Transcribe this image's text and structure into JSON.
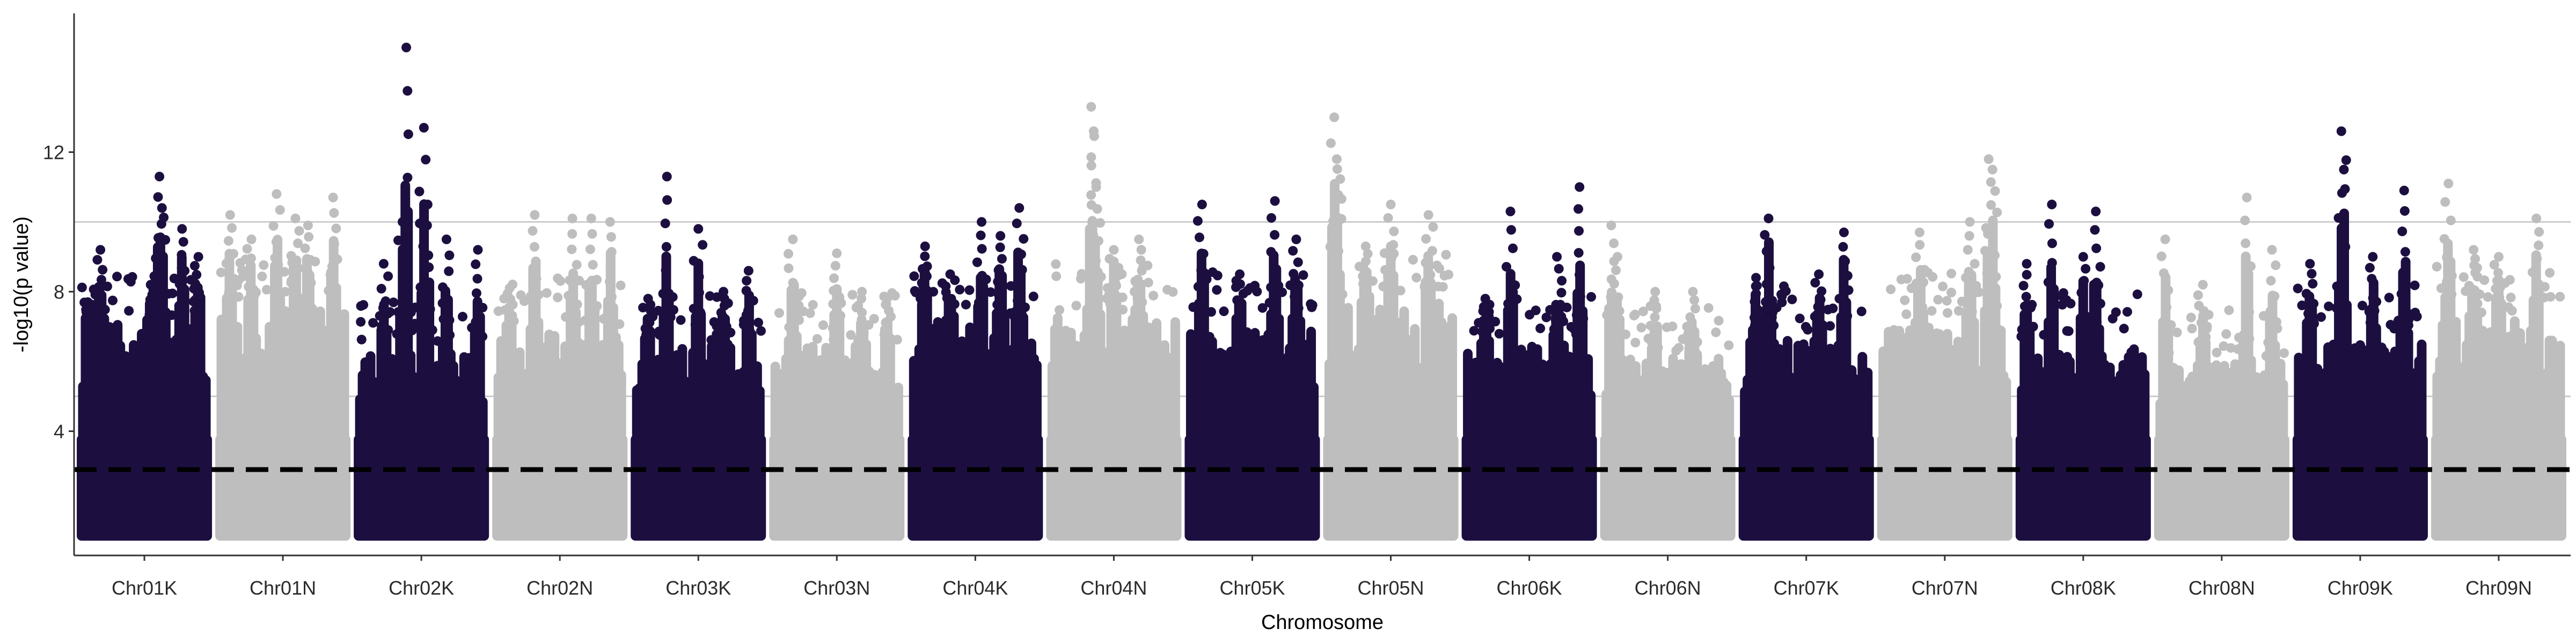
{
  "chart_data": {
    "type": "scatter",
    "title": "",
    "xlabel": "Chromosome",
    "ylabel": "-log10(p value)",
    "categories": [
      "Chr01K",
      "Chr01N",
      "Chr02K",
      "Chr02N",
      "Chr03K",
      "Chr03N",
      "Chr04K",
      "Chr04N",
      "Chr05K",
      "Chr05N",
      "Chr06K",
      "Chr06N",
      "Chr07K",
      "Chr07N",
      "Chr08K",
      "Chr08N",
      "Chr09K",
      "Chr09N"
    ],
    "ylim": [
      0,
      15.5
    ],
    "yticks": [
      4,
      8,
      12
    ],
    "grid": "horizontal lines at 5 and 10",
    "point_min": 1.0,
    "threshold_dashed": 2.9,
    "colors": {
      "K": "#1c0f40",
      "N": "#bebebe",
      "threshold": "#000000",
      "refline": "#cccccc",
      "axis": "#333333"
    },
    "series": [
      {
        "category": "Chr01K",
        "color_group": "K",
        "typical_top": 7.2,
        "peaks": [
          {
            "pos": 0.05,
            "y": 7.7
          },
          {
            "pos": 0.15,
            "y": 9.2
          },
          {
            "pos": 0.55,
            "y": 8.2
          },
          {
            "pos": 0.62,
            "y": 11.3
          },
          {
            "pos": 0.64,
            "y": 10.4
          },
          {
            "pos": 0.8,
            "y": 9.8
          },
          {
            "pos": 0.93,
            "y": 9.0
          }
        ]
      },
      {
        "category": "Chr01N",
        "color_group": "N",
        "typical_top": 7.6,
        "peaks": [
          {
            "pos": 0.08,
            "y": 10.2
          },
          {
            "pos": 0.25,
            "y": 9.5
          },
          {
            "pos": 0.45,
            "y": 10.8
          },
          {
            "pos": 0.6,
            "y": 10.1
          },
          {
            "pos": 0.7,
            "y": 9.9
          },
          {
            "pos": 0.9,
            "y": 10.7
          }
        ]
      },
      {
        "category": "Chr02K",
        "color_group": "K",
        "typical_top": 6.3,
        "peaks": [
          {
            "pos": 0.2,
            "y": 8.8
          },
          {
            "pos": 0.35,
            "y": 10.0
          },
          {
            "pos": 0.38,
            "y": 15.0
          },
          {
            "pos": 0.52,
            "y": 12.7
          },
          {
            "pos": 0.55,
            "y": 10.5
          },
          {
            "pos": 0.7,
            "y": 9.5
          },
          {
            "pos": 0.95,
            "y": 9.2
          }
        ]
      },
      {
        "category": "Chr02N",
        "color_group": "N",
        "typical_top": 7.0,
        "peaks": [
          {
            "pos": 0.1,
            "y": 8.1
          },
          {
            "pos": 0.3,
            "y": 10.2
          },
          {
            "pos": 0.6,
            "y": 10.1
          },
          {
            "pos": 0.75,
            "y": 10.1
          },
          {
            "pos": 0.9,
            "y": 10.0
          }
        ]
      },
      {
        "category": "Chr03K",
        "color_group": "K",
        "typical_top": 6.6,
        "peaks": [
          {
            "pos": 0.1,
            "y": 7.8
          },
          {
            "pos": 0.25,
            "y": 11.3
          },
          {
            "pos": 0.5,
            "y": 9.8
          },
          {
            "pos": 0.7,
            "y": 8.0
          },
          {
            "pos": 0.9,
            "y": 8.6
          }
        ]
      },
      {
        "category": "Chr03N",
        "color_group": "N",
        "typical_top": 6.6,
        "peaks": [
          {
            "pos": 0.15,
            "y": 9.5
          },
          {
            "pos": 0.5,
            "y": 9.1
          },
          {
            "pos": 0.7,
            "y": 8.0
          },
          {
            "pos": 0.9,
            "y": 7.8
          }
        ]
      },
      {
        "category": "Chr04K",
        "color_group": "K",
        "typical_top": 7.3,
        "peaks": [
          {
            "pos": 0.1,
            "y": 9.3
          },
          {
            "pos": 0.3,
            "y": 8.5
          },
          {
            "pos": 0.55,
            "y": 10.0
          },
          {
            "pos": 0.7,
            "y": 9.6
          },
          {
            "pos": 0.85,
            "y": 10.4
          }
        ]
      },
      {
        "category": "Chr04N",
        "color_group": "N",
        "typical_top": 7.4,
        "peaks": [
          {
            "pos": 0.32,
            "y": 13.3
          },
          {
            "pos": 0.34,
            "y": 12.6
          },
          {
            "pos": 0.36,
            "y": 11.0
          },
          {
            "pos": 0.5,
            "y": 9.2
          },
          {
            "pos": 0.7,
            "y": 9.5
          }
        ]
      },
      {
        "category": "Chr05K",
        "color_group": "K",
        "typical_top": 7.2,
        "peaks": [
          {
            "pos": 0.1,
            "y": 10.5
          },
          {
            "pos": 0.4,
            "y": 8.5
          },
          {
            "pos": 0.68,
            "y": 10.6
          },
          {
            "pos": 0.85,
            "y": 9.5
          }
        ]
      },
      {
        "category": "Chr05N",
        "color_group": "N",
        "typical_top": 7.8,
        "peaks": [
          {
            "pos": 0.05,
            "y": 13.0
          },
          {
            "pos": 0.07,
            "y": 11.8
          },
          {
            "pos": 0.3,
            "y": 9.3
          },
          {
            "pos": 0.5,
            "y": 10.5
          },
          {
            "pos": 0.8,
            "y": 10.2
          }
        ]
      },
      {
        "category": "Chr06K",
        "color_group": "K",
        "typical_top": 6.6,
        "peaks": [
          {
            "pos": 0.15,
            "y": 7.8
          },
          {
            "pos": 0.35,
            "y": 10.3
          },
          {
            "pos": 0.72,
            "y": 9.0
          },
          {
            "pos": 0.9,
            "y": 11.0
          }
        ]
      },
      {
        "category": "Chr06N",
        "color_group": "N",
        "typical_top": 6.3,
        "peaks": [
          {
            "pos": 0.05,
            "y": 9.9
          },
          {
            "pos": 0.1,
            "y": 9.0
          },
          {
            "pos": 0.4,
            "y": 8.0
          },
          {
            "pos": 0.7,
            "y": 8.0
          }
        ]
      },
      {
        "category": "Chr07K",
        "color_group": "K",
        "typical_top": 6.8,
        "peaks": [
          {
            "pos": 0.1,
            "y": 8.4
          },
          {
            "pos": 0.2,
            "y": 10.1
          },
          {
            "pos": 0.6,
            "y": 8.5
          },
          {
            "pos": 0.8,
            "y": 9.7
          }
        ]
      },
      {
        "category": "Chr07N",
        "color_group": "N",
        "typical_top": 7.2,
        "peaks": [
          {
            "pos": 0.3,
            "y": 9.7
          },
          {
            "pos": 0.7,
            "y": 10.0
          },
          {
            "pos": 0.85,
            "y": 11.8
          },
          {
            "pos": 0.88,
            "y": 11.5
          }
        ]
      },
      {
        "category": "Chr08K",
        "color_group": "K",
        "typical_top": 6.6,
        "peaks": [
          {
            "pos": 0.05,
            "y": 8.8
          },
          {
            "pos": 0.25,
            "y": 10.5
          },
          {
            "pos": 0.5,
            "y": 9.0
          },
          {
            "pos": 0.6,
            "y": 10.3
          }
        ]
      },
      {
        "category": "Chr08N",
        "color_group": "N",
        "typical_top": 6.1,
        "peaks": [
          {
            "pos": 0.05,
            "y": 9.5
          },
          {
            "pos": 0.35,
            "y": 8.2
          },
          {
            "pos": 0.7,
            "y": 10.7
          },
          {
            "pos": 0.9,
            "y": 9.2
          }
        ]
      },
      {
        "category": "Chr09K",
        "color_group": "K",
        "typical_top": 6.8,
        "peaks": [
          {
            "pos": 0.1,
            "y": 8.8
          },
          {
            "pos": 0.35,
            "y": 12.6
          },
          {
            "pos": 0.37,
            "y": 11.5
          },
          {
            "pos": 0.6,
            "y": 9.0
          },
          {
            "pos": 0.85,
            "y": 10.9
          }
        ]
      },
      {
        "category": "Chr09N",
        "color_group": "N",
        "typical_top": 7.4,
        "peaks": [
          {
            "pos": 0.1,
            "y": 11.1
          },
          {
            "pos": 0.3,
            "y": 9.2
          },
          {
            "pos": 0.5,
            "y": 9.0
          },
          {
            "pos": 0.8,
            "y": 10.1
          }
        ]
      }
    ]
  }
}
